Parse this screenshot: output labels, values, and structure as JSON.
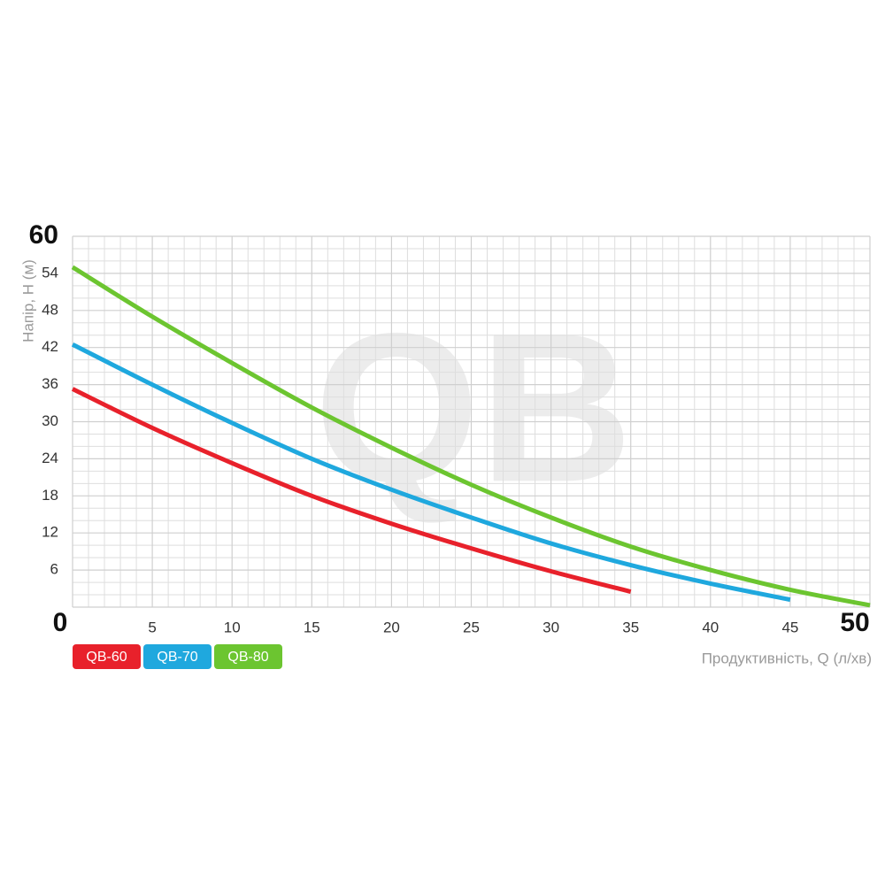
{
  "chart_data": {
    "type": "line",
    "watermark": "QB",
    "y_label": "Напір, H (м)",
    "x_label": "Продуктивність, Q (л/хв)",
    "x": [
      0,
      5,
      10,
      15,
      20,
      25,
      30,
      35,
      40,
      45,
      50
    ],
    "series": [
      {
        "name": "QB-60",
        "color": "#e8212b",
        "values": [
          35.3,
          29,
          23.3,
          18,
          13.5,
          9.5,
          5.8,
          2.5,
          null,
          null,
          null
        ]
      },
      {
        "name": "QB-70",
        "color": "#1fa8de",
        "values": [
          42.5,
          36,
          29.8,
          24,
          19,
          14.5,
          10.3,
          6.8,
          3.8,
          1.2,
          null
        ]
      },
      {
        "name": "QB-80",
        "color": "#6cc530",
        "values": [
          55,
          47,
          39.5,
          32.3,
          25.8,
          19.8,
          14.5,
          9.8,
          6,
          2.8,
          0.3
        ]
      }
    ],
    "xlim": [
      0,
      50
    ],
    "ylim": [
      0,
      60
    ],
    "xticks": [
      0,
      5,
      10,
      15,
      20,
      25,
      30,
      35,
      40,
      45,
      50
    ],
    "yticks": [
      0,
      6,
      12,
      18,
      24,
      30,
      36,
      42,
      48,
      54,
      60
    ],
    "xminor": [
      1,
      2,
      3,
      4,
      6,
      7,
      8,
      9,
      11,
      12,
      13,
      14,
      16,
      17,
      18,
      19,
      21,
      22,
      23,
      24,
      26,
      27,
      28,
      29,
      31,
      32,
      33,
      34,
      36,
      37,
      38,
      39,
      41,
      42,
      43,
      44,
      46,
      47,
      48,
      49
    ],
    "yminor": [
      2,
      4,
      8,
      10,
      14,
      16,
      20,
      22,
      26,
      28,
      32,
      34,
      38,
      40,
      44,
      46,
      50,
      52,
      56,
      58
    ],
    "grid": true
  }
}
